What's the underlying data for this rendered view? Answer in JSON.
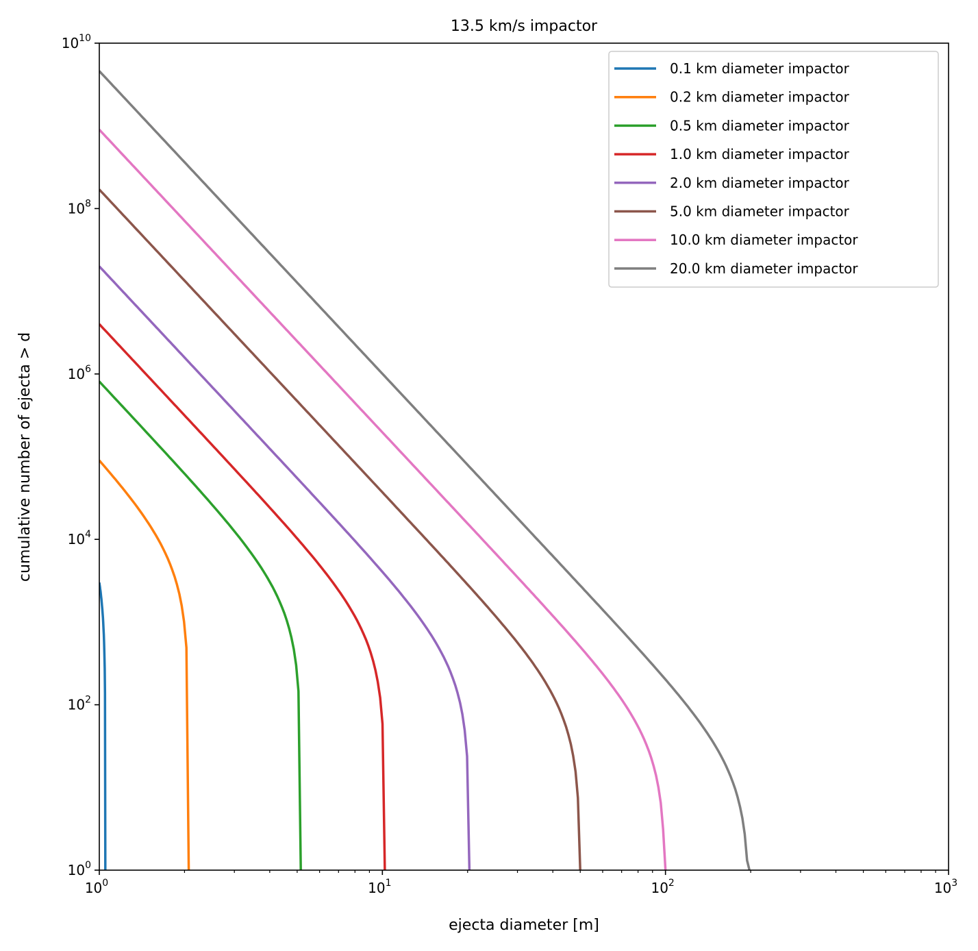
{
  "chart_data": {
    "type": "line",
    "title": "13.5 km/s impactor",
    "xlabel": "ejecta diameter [m]",
    "ylabel": "cumulative number of ejecta > d",
    "xscale": "log",
    "yscale": "log",
    "xlim": [
      1,
      1000
    ],
    "ylim": [
      1,
      10000000000
    ],
    "xticks": [
      {
        "value": 1,
        "base": "10",
        "exp": "0"
      },
      {
        "value": 10,
        "base": "10",
        "exp": "1"
      },
      {
        "value": 100,
        "base": "10",
        "exp": "2"
      },
      {
        "value": 1000,
        "base": "10",
        "exp": "3"
      }
    ],
    "yticks": [
      {
        "value": 1,
        "base": "10",
        "exp": "0"
      },
      {
        "value": 100,
        "base": "10",
        "exp": "2"
      },
      {
        "value": 10000,
        "base": "10",
        "exp": "4"
      },
      {
        "value": 1000000,
        "base": "10",
        "exp": "6"
      },
      {
        "value": 100000000,
        "base": "10",
        "exp": "8"
      },
      {
        "value": 10000000000,
        "base": "10",
        "exp": "10"
      }
    ],
    "grid": false,
    "legend_position": "top-right",
    "model": "N(>d) = N1 * (d^-slope - dmax^-slope) / (1 - dmax^-slope), approximated from figure",
    "slope": 3.66,
    "series": [
      {
        "name": "0.1 km diameter impactor",
        "color": "#1f77b4",
        "n_at_1m": 3000,
        "max_diameter_m": 1.05
      },
      {
        "name": "0.2 km diameter impactor",
        "color": "#ff7f0e",
        "n_at_1m": 90000,
        "max_diameter_m": 2.07
      },
      {
        "name": "0.5 km diameter impactor",
        "color": "#2ca02c",
        "n_at_1m": 810000,
        "max_diameter_m": 5.15
      },
      {
        "name": "1.0 km diameter impactor",
        "color": "#d62728",
        "n_at_1m": 4000000,
        "max_diameter_m": 10.2
      },
      {
        "name": "2.0 km diameter impactor",
        "color": "#9467bd",
        "n_at_1m": 20000000,
        "max_diameter_m": 20.3
      },
      {
        "name": "5.0 km diameter impactor",
        "color": "#8c564b",
        "n_at_1m": 170000000,
        "max_diameter_m": 50
      },
      {
        "name": "10.0 km diameter impactor",
        "color": "#e377c2",
        "n_at_1m": 900000000,
        "max_diameter_m": 100
      },
      {
        "name": "20.0 km diameter impactor",
        "color": "#7f7f7f",
        "n_at_1m": 4600000000,
        "max_diameter_m": 198
      }
    ]
  }
}
